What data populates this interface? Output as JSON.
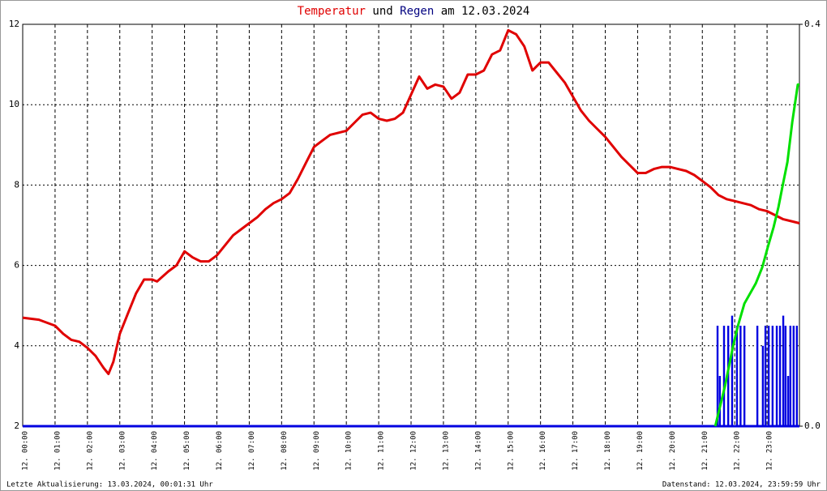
{
  "chart_data": {
    "type": "line",
    "title_parts": [
      "Temperatur",
      "und",
      "Regen",
      "am 12.03.2024"
    ],
    "footer_left": "Letzte Aktualisierung: 13.03.2024, 00:01:31 Uhr",
    "footer_right": "Datenstand: 12.03.2024, 23:59:59 Uhr",
    "xlim": [
      0,
      24
    ],
    "xticks": [
      {
        "value": 0,
        "label": "12. 00:00"
      },
      {
        "value": 1,
        "label": "12. 01:00"
      },
      {
        "value": 2,
        "label": "12. 02:00"
      },
      {
        "value": 3,
        "label": "12. 03:00"
      },
      {
        "value": 4,
        "label": "12. 04:00"
      },
      {
        "value": 5,
        "label": "12. 05:00"
      },
      {
        "value": 6,
        "label": "12. 06:00"
      },
      {
        "value": 7,
        "label": "12. 07:00"
      },
      {
        "value": 8,
        "label": "12. 08:00"
      },
      {
        "value": 9,
        "label": "12. 09:00"
      },
      {
        "value": 10,
        "label": "12. 10:00"
      },
      {
        "value": 11,
        "label": "12. 11:00"
      },
      {
        "value": 12,
        "label": "12. 12:00"
      },
      {
        "value": 13,
        "label": "12. 13:00"
      },
      {
        "value": 14,
        "label": "12. 14:00"
      },
      {
        "value": 15,
        "label": "12. 15:00"
      },
      {
        "value": 16,
        "label": "12. 16:00"
      },
      {
        "value": 17,
        "label": "12. 17:00"
      },
      {
        "value": 18,
        "label": "12. 18:00"
      },
      {
        "value": 19,
        "label": "12. 19:00"
      },
      {
        "value": 20,
        "label": "12. 20:00"
      },
      {
        "value": 21,
        "label": "12. 21:00"
      },
      {
        "value": 22,
        "label": "12. 22:00"
      },
      {
        "value": 23,
        "label": "12. 23:00"
      }
    ],
    "ylim": [
      2,
      12
    ],
    "yticks": [
      2,
      4,
      6,
      8,
      10,
      12
    ],
    "y2lim": [
      0,
      0.4
    ],
    "y2ticks": [
      {
        "value": 0,
        "label": "0.0"
      },
      0.4
    ],
    "grid": true,
    "series": [
      {
        "kind": "line",
        "color": "#e00000",
        "axis": "y",
        "x": [
          0,
          0.5,
          1,
          1.25,
          1.5,
          1.75,
          2,
          2.25,
          2.5,
          2.65,
          2.8,
          3,
          3.25,
          3.5,
          3.75,
          4,
          4.15,
          4.5,
          4.75,
          5,
          5.25,
          5.5,
          5.75,
          6,
          6.25,
          6.5,
          6.75,
          7,
          7.25,
          7.5,
          7.75,
          8,
          8.25,
          8.5,
          8.75,
          9,
          9.25,
          9.5,
          9.75,
          10,
          10.25,
          10.5,
          10.75,
          11,
          11.25,
          11.5,
          11.75,
          12,
          12.25,
          12.5,
          12.75,
          13,
          13.25,
          13.5,
          13.75,
          14,
          14.25,
          14.5,
          14.75,
          15,
          15.25,
          15.5,
          15.75,
          16,
          16.25,
          16.5,
          16.75,
          17,
          17.25,
          17.5,
          17.75,
          18,
          18.25,
          18.5,
          18.75,
          19,
          19.25,
          19.5,
          19.75,
          20,
          20.25,
          20.5,
          20.75,
          21,
          21.25,
          21.5,
          21.75,
          22,
          22.25,
          22.5,
          22.75,
          23,
          23.25,
          23.5,
          23.75,
          24
        ],
        "values": [
          4.7,
          4.65,
          4.5,
          4.3,
          4.15,
          4.1,
          3.95,
          3.75,
          3.45,
          3.3,
          3.6,
          4.3,
          4.8,
          5.3,
          5.65,
          5.65,
          5.6,
          5.85,
          6.0,
          6.35,
          6.2,
          6.1,
          6.1,
          6.25,
          6.5,
          6.75,
          6.9,
          7.05,
          7.2,
          7.4,
          7.55,
          7.65,
          7.8,
          8.15,
          8.55,
          8.95,
          9.1,
          9.25,
          9.3,
          9.35,
          9.55,
          9.75,
          9.8,
          9.65,
          9.6,
          9.65,
          9.8,
          10.25,
          10.7,
          10.4,
          10.5,
          10.45,
          10.15,
          10.3,
          10.75,
          10.75,
          10.85,
          11.25,
          11.35,
          11.85,
          11.75,
          11.45,
          10.85,
          11.05,
          11.05,
          10.8,
          10.55,
          10.2,
          9.85,
          9.6,
          9.4,
          9.2,
          8.95,
          8.7,
          8.5,
          8.3,
          8.3,
          8.4,
          8.45,
          8.45,
          8.4,
          8.35,
          8.25,
          8.1,
          7.95,
          7.75,
          7.65,
          7.6,
          7.55,
          7.5,
          7.4,
          7.35,
          7.25,
          7.15,
          7.1,
          7.05
        ]
      },
      {
        "kind": "bar",
        "color": "#0000e0",
        "axis": "y2",
        "x": [
          21.47,
          21.54,
          21.67,
          21.8,
          21.92,
          22.07,
          22.18,
          22.3,
          22.7,
          22.87,
          22.95,
          23.05,
          23.17,
          23.3,
          23.4,
          23.5,
          23.57,
          23.65,
          23.72,
          23.82,
          23.92
        ],
        "values": [
          0.1,
          0.05,
          0.1,
          0.1,
          0.11,
          0.1,
          0.1,
          0.1,
          0.1,
          0.08,
          0.1,
          0.1,
          0.1,
          0.1,
          0.1,
          0.11,
          0.1,
          0.05,
          0.1,
          0.1,
          0.1
        ]
      },
      {
        "kind": "line",
        "color": "#00e000",
        "axis": "y2",
        "x": [
          21.4,
          21.7,
          21.95,
          22.1,
          22.3,
          22.65,
          22.85,
          23.02,
          23.2,
          23.35,
          23.48,
          23.63,
          23.78,
          23.95,
          24
        ],
        "values": [
          0,
          0.04,
          0.08,
          0.1,
          0.122,
          0.142,
          0.158,
          0.178,
          0.198,
          0.218,
          0.239,
          0.263,
          0.303,
          0.34,
          0.34
        ]
      }
    ]
  }
}
